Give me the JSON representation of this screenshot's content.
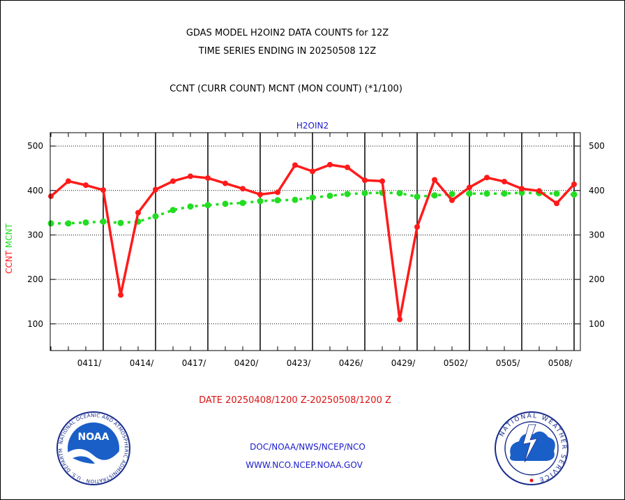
{
  "header": {
    "line1": "GDAS MODEL H2OIN2 DATA COUNTS for 12Z",
    "line2": "TIME SERIES ENDING IN 20250508 12Z",
    "line3": "CCNT (CURR COUNT) MCNT (MON COUNT) (*1/100)"
  },
  "footer": {
    "date_range": "DATE 20250408/1200 Z-20250508/1200 Z",
    "org_line": "DOC/NOAA/NWS/NCEP/NCO",
    "url_line": "WWW.NCO.NCEP.NOAA.GOV"
  },
  "logos": {
    "left": {
      "text": "NOAA",
      "ring_text": "NATIONAL OCEANIC AND ATMOSPHERIC ADMINISTRATION · U.S. DEPARTMENT OF COMMERCE"
    },
    "right": {
      "ring_text": "NATIONAL WEATHER SERVICE"
    }
  },
  "colors": {
    "ccnt": "#ff1a1a",
    "mcnt": "#22dd22",
    "title": "#1a1acc",
    "footer_date": "#dd1111",
    "footer_links": "#1a1acc"
  },
  "chart_data": {
    "type": "line",
    "title": "H2OIN2",
    "ylabel_parts": [
      {
        "text": "CCNT",
        "series": "CCNT"
      },
      {
        "text": "MCNT",
        "series": "MCNT"
      }
    ],
    "ylim": [
      40,
      530
    ],
    "yticks": [
      100,
      200,
      300,
      400,
      500
    ],
    "y_gridlines": true,
    "x_start": "2025-04-08",
    "x_end": "2025-05-08",
    "x_tick_labels": [
      "0411/",
      "0414/",
      "0417/",
      "0420/",
      "0423/",
      "0426/",
      "0429/",
      "0502/",
      "0505/",
      "0508/"
    ],
    "x_tick_dates": [
      "2025-04-11",
      "2025-04-14",
      "2025-04-17",
      "2025-04-20",
      "2025-04-23",
      "2025-04-26",
      "2025-04-29",
      "2025-05-02",
      "2025-05-05",
      "2025-05-08"
    ],
    "dates": [
      "04/08",
      "04/09",
      "04/10",
      "04/11",
      "04/12",
      "04/13",
      "04/14",
      "04/15",
      "04/16",
      "04/17",
      "04/18",
      "04/19",
      "04/20",
      "04/21",
      "04/22",
      "04/23",
      "04/24",
      "04/25",
      "04/26",
      "04/27",
      "04/28",
      "04/29",
      "04/30",
      "05/01",
      "05/02",
      "05/03",
      "05/04",
      "05/05",
      "05/06",
      "05/07",
      "05/08"
    ],
    "series": [
      {
        "name": "CCNT",
        "values": [
          387,
          421,
          412,
          401,
          165,
          350,
          402,
          421,
          432,
          428,
          416,
          404,
          391,
          396,
          457,
          443,
          458,
          452,
          423,
          421,
          110,
          318,
          424,
          378,
          407,
          429,
          420,
          404,
          399,
          371,
          414
        ]
      },
      {
        "name": "MCNT",
        "values": [
          326,
          326,
          328,
          330,
          327,
          330,
          342,
          356,
          364,
          367,
          370,
          372,
          376,
          378,
          379,
          384,
          388,
          392,
          394,
          395,
          394,
          386,
          389,
          392,
          393,
          393,
          393,
          395,
          394,
          393,
          391
        ]
      }
    ]
  }
}
